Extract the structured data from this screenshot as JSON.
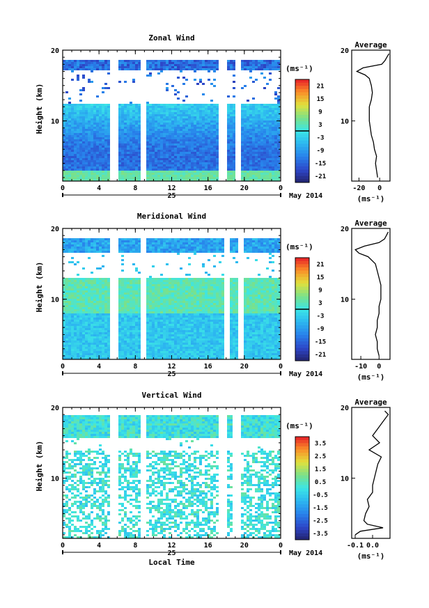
{
  "chart_data": [
    {
      "type": "heatmap",
      "title": "Zonal Wind",
      "ylabel": "Height (km)",
      "x_ticks": [
        "0",
        "4",
        "8",
        "12",
        "16",
        "20",
        "0"
      ],
      "y_ticks": [
        "20",
        "10"
      ],
      "xlim": [
        0,
        24
      ],
      "ylim": [
        1.5,
        20
      ],
      "date_label": "25",
      "month_label": "May 2014",
      "colorbar": {
        "unit": "(ms⁻¹)",
        "ticks": [
          "21",
          "15",
          "9",
          "3",
          "-3",
          "-9",
          "-15",
          "-21"
        ],
        "range": [
          -24,
          24
        ],
        "highlight": 0
      },
      "palette": "blue-cyan-green-yellow-red",
      "gaps_local_time": [
        5.7,
        9.0,
        17.6,
        19.4
      ],
      "average_profile": {
        "title": "Average",
        "x_ticks": [
          "-20",
          "0"
        ],
        "xlim": [
          -27,
          10
        ],
        "y_ticks": [
          "20",
          "10"
        ],
        "xlabel": "(ms⁻¹)",
        "points": [
          {
            "h": 2.0,
            "v": -2
          },
          {
            "h": 3,
            "v": -3
          },
          {
            "h": 4,
            "v": -4
          },
          {
            "h": 5,
            "v": -3
          },
          {
            "h": 6,
            "v": -5
          },
          {
            "h": 7,
            "v": -6
          },
          {
            "h": 8,
            "v": -8
          },
          {
            "h": 9,
            "v": -9
          },
          {
            "h": 10,
            "v": -10
          },
          {
            "h": 11,
            "v": -10
          },
          {
            "h": 12,
            "v": -10
          },
          {
            "h": 13,
            "v": -8
          },
          {
            "h": 14,
            "v": -7
          },
          {
            "h": 15,
            "v": -8
          },
          {
            "h": 16,
            "v": -10
          },
          {
            "h": 16.5,
            "v": -14
          },
          {
            "h": 17,
            "v": -22
          },
          {
            "h": 17.5,
            "v": -16
          },
          {
            "h": 18,
            "v": 2
          },
          {
            "h": 18.5,
            "v": 5
          },
          {
            "h": 19,
            "v": 7
          },
          {
            "h": 19.5,
            "v": 9
          }
        ]
      }
    },
    {
      "type": "heatmap",
      "title": "Meridional Wind",
      "ylabel": "Height (km)",
      "x_ticks": [
        "0",
        "4",
        "8",
        "12",
        "16",
        "20",
        "0"
      ],
      "y_ticks": [
        "20",
        "10"
      ],
      "xlim": [
        0,
        24
      ],
      "ylim": [
        1.5,
        20
      ],
      "date_label": "25",
      "month_label": "May 2014",
      "colorbar": {
        "unit": "(ms⁻¹)",
        "ticks": [
          "21",
          "15",
          "9",
          "3",
          "-3",
          "-9",
          "-15",
          "-21"
        ],
        "range": [
          -24,
          24
        ],
        "highlight": 0
      },
      "palette": "blue-cyan-green-yellow-red",
      "gaps_local_time": [
        5.7,
        9.0,
        18.0,
        19.6
      ],
      "average_profile": {
        "title": "Average",
        "x_ticks": [
          "-10",
          "0"
        ],
        "xlim": [
          -15,
          6
        ],
        "y_ticks": [
          "20",
          "10"
        ],
        "xlabel": "(ms⁻¹)",
        "points": [
          {
            "h": 2.0,
            "v": 0
          },
          {
            "h": 3,
            "v": -1
          },
          {
            "h": 4,
            "v": -1
          },
          {
            "h": 5,
            "v": -2
          },
          {
            "h": 6,
            "v": -1
          },
          {
            "h": 7,
            "v": -1
          },
          {
            "h": 8,
            "v": 0
          },
          {
            "h": 9,
            "v": 0
          },
          {
            "h": 10,
            "v": 1
          },
          {
            "h": 11,
            "v": 1
          },
          {
            "h": 12,
            "v": 1
          },
          {
            "h": 13,
            "v": 0
          },
          {
            "h": 14,
            "v": -1
          },
          {
            "h": 15,
            "v": -2
          },
          {
            "h": 16,
            "v": -6
          },
          {
            "h": 16.5,
            "v": -11
          },
          {
            "h": 17,
            "v": -13
          },
          {
            "h": 17.5,
            "v": -8
          },
          {
            "h": 18,
            "v": 0
          },
          {
            "h": 18.5,
            "v": 3
          },
          {
            "h": 19,
            "v": 4
          },
          {
            "h": 19.5,
            "v": 5
          }
        ]
      }
    },
    {
      "type": "heatmap",
      "title": "Vertical Wind",
      "ylabel": "Height (km)",
      "xlabel": "Local Time",
      "x_ticks": [
        "0",
        "4",
        "8",
        "12",
        "16",
        "20",
        "0"
      ],
      "y_ticks": [
        "20",
        "10"
      ],
      "xlim": [
        0,
        24
      ],
      "ylim": [
        1.5,
        20
      ],
      "date_label": "25",
      "month_label": "May 2014",
      "colorbar": {
        "unit": "(ms⁻¹)",
        "ticks": [
          "3.5",
          "2.5",
          "1.5",
          "0.5",
          "-0.5",
          "-1.5",
          "-2.5",
          "-3.5"
        ],
        "range": [
          -4,
          4
        ],
        "highlight": null
      },
      "palette": "blue-cyan-green-yellow-red",
      "gaps_local_time": [
        5.7,
        8.8,
        17.6,
        19.2
      ],
      "average_profile": {
        "title": "Average",
        "x_ticks": [
          "-0.1",
          "0.0"
        ],
        "xlim": [
          -0.12,
          0.1
        ],
        "y_ticks": [
          "20",
          "10"
        ],
        "xlabel": "(ms⁻¹)",
        "points": [
          {
            "h": 2.0,
            "v": -0.1
          },
          {
            "h": 2.5,
            "v": -0.07
          },
          {
            "h": 3,
            "v": 0.06
          },
          {
            "h": 3.5,
            "v": -0.03
          },
          {
            "h": 4,
            "v": -0.05
          },
          {
            "h": 5,
            "v": -0.04
          },
          {
            "h": 6,
            "v": -0.02
          },
          {
            "h": 7,
            "v": -0.03
          },
          {
            "h": 8,
            "v": 0.0
          },
          {
            "h": 9,
            "v": 0.0
          },
          {
            "h": 10,
            "v": 0.01
          },
          {
            "h": 11,
            "v": 0.02
          },
          {
            "h": 12,
            "v": 0.03
          },
          {
            "h": 13,
            "v": 0.05
          },
          {
            "h": 14,
            "v": -0.02
          },
          {
            "h": 15,
            "v": 0.04
          },
          {
            "h": 16,
            "v": 0.0
          },
          {
            "h": 17,
            "v": 0.03
          },
          {
            "h": 18,
            "v": 0.06
          },
          {
            "h": 19,
            "v": 0.09
          },
          {
            "h": 19.5,
            "v": 0.07
          }
        ]
      }
    }
  ]
}
